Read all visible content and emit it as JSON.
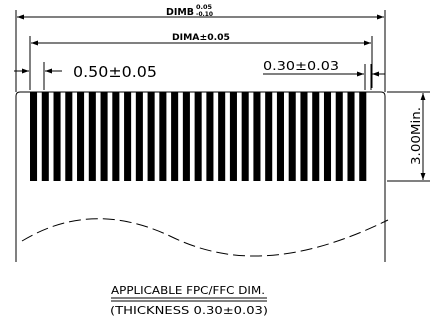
{
  "drawing": {
    "dim_b": {
      "label": "DIMB",
      "tol_upper": "0.05",
      "tol_lower": "-0.10"
    },
    "dim_a": "DIMA±0.05",
    "pitch": "0.50±0.05",
    "lead_width": "0.30±0.03",
    "min_length": "3.00Min.",
    "caption_line1": "APPLICABLE FPC/FFC DIM.",
    "caption_line2": "(THICKNESS 0.30±0.03)",
    "conductor_count": 29,
    "ink_color": "#000000",
    "background_color": "#ffffff"
  }
}
